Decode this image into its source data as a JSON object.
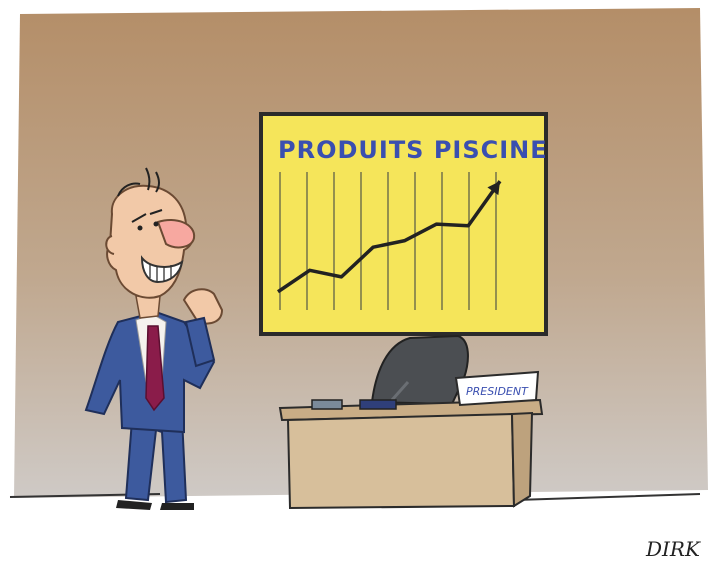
{
  "chart": {
    "title": "PRODUITS PISCINE",
    "line_color": "#222222",
    "background_color": "#f5e55a"
  },
  "chart_data": {
    "type": "line",
    "title": "PRODUITS PISCINE",
    "xlabel": "",
    "ylabel": "",
    "x": [
      1,
      2,
      3,
      4,
      5,
      6,
      7,
      8
    ],
    "series": [
      {
        "values": [
          5,
          18,
          14,
          32,
          36,
          46,
          45,
          72
        ]
      }
    ],
    "ylim": [
      0,
      80
    ],
    "grid": "vertical"
  },
  "desk": {
    "nameplate_text": "PRESIDENT"
  },
  "signature": "DIRK",
  "colors": {
    "wall_top": "#b9926c",
    "wall_bottom": "#c9c4c0",
    "suit": "#3d5a9e",
    "tie": "#8a1c4a",
    "desk": "#d7bf9b",
    "chair": "#4b4e52"
  }
}
